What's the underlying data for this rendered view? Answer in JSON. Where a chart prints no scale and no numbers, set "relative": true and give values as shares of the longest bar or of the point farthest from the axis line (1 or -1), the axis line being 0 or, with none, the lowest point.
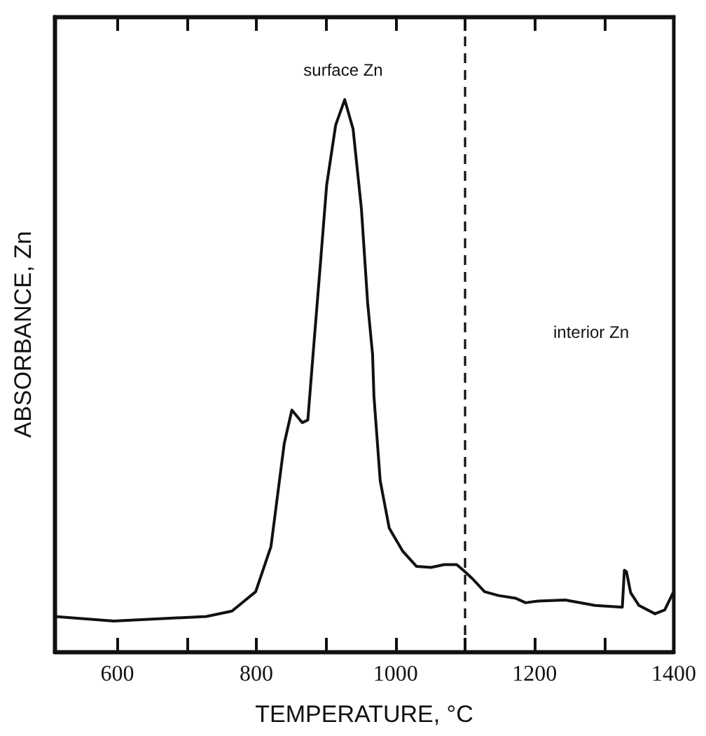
{
  "chart_data": {
    "type": "line",
    "xlabel": "TEMPERATURE, °C",
    "ylabel": "ABSORBANCE, Zn",
    "relative": true,
    "xlim": [
      510,
      1400
    ],
    "xticks": [
      600,
      {
        "value": 700,
        "label": null
      },
      800,
      {
        "value": 900,
        "label": null
      },
      1000,
      {
        "value": 1100,
        "label": null
      },
      1200,
      {
        "value": 1300,
        "label": null
      },
      1400
    ],
    "x": [
      510,
      595,
      675,
      728,
      765,
      799,
      821,
      840,
      851,
      866,
      874,
      882,
      893,
      901,
      914,
      927,
      939,
      951,
      960,
      967,
      969,
      978,
      991,
      1010,
      1030,
      1051,
      1070,
      1088,
      1100,
      1111,
      1128,
      1148,
      1173,
      1187,
      1205,
      1244,
      1287,
      1326,
      1329,
      1332,
      1338,
      1350,
      1373,
      1387,
      1399
    ],
    "series": [
      {
        "color": "#111111",
        "values": [
          0.064,
          0.056,
          0.061,
          0.064,
          0.074,
          0.109,
          0.191,
          0.377,
          0.438,
          0.415,
          0.42,
          0.547,
          0.718,
          0.845,
          0.954,
          1,
          0.947,
          0.802,
          0.631,
          0.539,
          0.463,
          0.31,
          0.224,
          0.183,
          0.155,
          0.153,
          0.158,
          0.158,
          0.145,
          0.132,
          0.109,
          0.102,
          0.097,
          0.089,
          0.092,
          0.094,
          0.084,
          0.081,
          0.148,
          0.145,
          0.107,
          0.084,
          0.069,
          0.076,
          0.107
        ]
      }
    ],
    "ref_lines": [
      {
        "axis": "x",
        "value": 1100,
        "line_style": "dashed",
        "color": "#111111"
      }
    ],
    "annotations": [
      "surface Zn",
      "interior Zn"
    ],
    "grid": false
  }
}
